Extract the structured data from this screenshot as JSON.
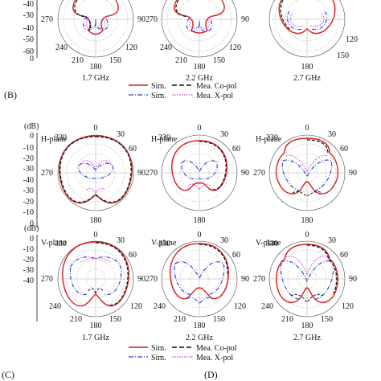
{
  "angle_labels": [
    "0",
    "30",
    "60",
    "90",
    "120",
    "150",
    "180",
    "210",
    "240",
    "270",
    "300",
    "330"
  ],
  "radial_ticks": [
    "0",
    "-10",
    "-20",
    "-30",
    "-40"
  ],
  "db_unit": "(dB)",
  "h_plane_label": "H-plane",
  "v_plane_label": "V-plane",
  "freqs": [
    "1.7 GHz",
    "2.2 GHz",
    "2.7 GHz"
  ],
  "panel_letters": {
    "b": "(B)",
    "c": "(C)",
    "d": "(D)"
  },
  "legend": {
    "sim_co": "Sim.",
    "mea_co": "Mea. Co-pol",
    "sim_x": "Sim.",
    "mea_x": "Mea. X-pol"
  },
  "colors": {
    "sim_co": "#d42020",
    "mea_co": "#111111",
    "sim_x": "#2b3fc9",
    "mea_x": "#d13ad8",
    "grid": "#b5b5b5"
  }
}
